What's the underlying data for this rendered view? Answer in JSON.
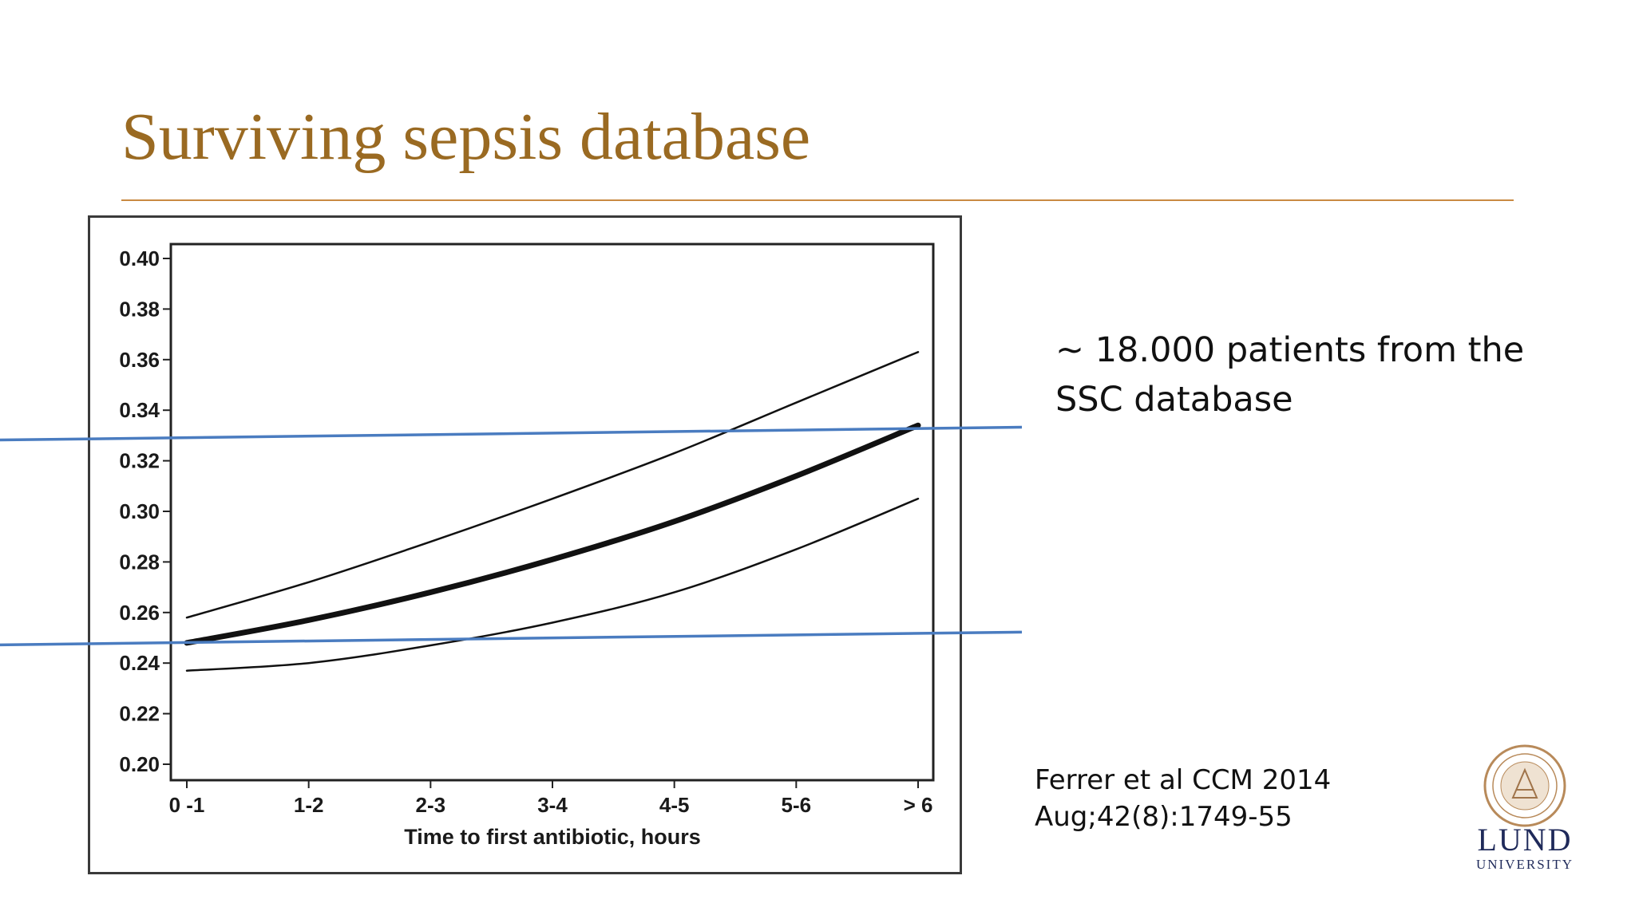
{
  "slide": {
    "title": "Surviving sepsis database",
    "side_text": "~ 18.000 patients from the SSC database",
    "reference_line1": "Ferrer et al CCM 2014",
    "reference_line2": "Aug;42(8):1749-55",
    "logo_name": "LUND",
    "logo_sub": "UNIVERSITY",
    "accent_color": "#9a6a22",
    "annotation_line_color": "#4a7cc0"
  },
  "chart_data": {
    "type": "line",
    "title": "",
    "xlabel": "Time to first antibiotic, hours",
    "ylabel": "",
    "categories": [
      "0 -1",
      "1-2",
      "2-3",
      "3-4",
      "4-5",
      "5-6",
      "> 6"
    ],
    "yticks": [
      "0.20",
      "0.22",
      "0.24",
      "0.26",
      "0.28",
      "0.30",
      "0.32",
      "0.34",
      "0.36",
      "0.38",
      "0.40"
    ],
    "ylim": [
      0.2,
      0.4
    ],
    "series": [
      {
        "name": "upper confidence bound",
        "values": [
          0.258,
          0.272,
          0.288,
          0.305,
          0.323,
          0.343,
          0.363
        ]
      },
      {
        "name": "predicted mortality",
        "values": [
          0.248,
          0.257,
          0.268,
          0.281,
          0.296,
          0.314,
          0.334
        ]
      },
      {
        "name": "lower confidence bound",
        "values": [
          0.237,
          0.24,
          0.247,
          0.256,
          0.268,
          0.285,
          0.305
        ]
      }
    ],
    "annotation_lines": [
      {
        "name": "upper reference line",
        "y": 0.332
      },
      {
        "name": "lower reference line",
        "y": 0.251
      }
    ]
  }
}
